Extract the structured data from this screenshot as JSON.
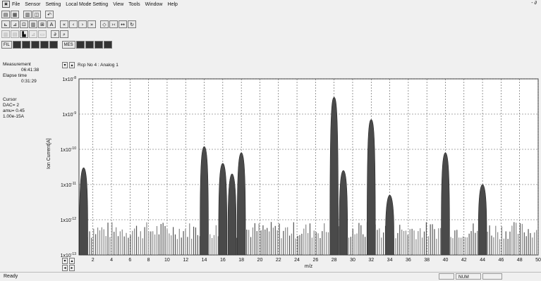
{
  "menu": [
    "File",
    "Sensor",
    "Setting",
    "Local Mode Setting",
    "View",
    "Tools",
    "Window",
    "Help"
  ],
  "window_controls": "- ∂",
  "toolbar_row3_label": "A",
  "toolbar_row4_label": "∂",
  "toolbar_row5_labels": {
    "fil": "FIL",
    "mes": "MES"
  },
  "side": {
    "measurement_label": "Measurement",
    "measurement_time": "06:41:38",
    "elapse_label": "Elapse time",
    "elapse_time": "0:31:29",
    "cursor_label": "Cursor",
    "dac": "DAC=  2",
    "amu": "amu= 0.45",
    "current": "1.00e-15A"
  },
  "chart_header": "Rcp No 4 : Analog 1",
  "status": {
    "ready": "Ready",
    "num": "NUM"
  },
  "chart_data": {
    "type": "bar",
    "xlabel": "m/z",
    "ylabel": "Ion Current[A]",
    "y_scale": "log",
    "ylim": [
      1e-13,
      1e-08
    ],
    "xlim": [
      0.5,
      50
    ],
    "x_ticks": [
      2,
      4,
      6,
      8,
      10,
      12,
      14,
      16,
      18,
      20,
      22,
      24,
      26,
      28,
      30,
      32,
      34,
      36,
      38,
      40,
      42,
      44,
      46,
      48,
      50
    ],
    "y_ticks": [
      "1x10-8",
      "1x10-9",
      "1x10-10",
      "1x10-11",
      "1x10-12",
      "1x10-13"
    ],
    "grid": true,
    "peaks": [
      {
        "mz": 1,
        "value": 3e-11
      },
      {
        "mz": 14,
        "value": 1.2e-10
      },
      {
        "mz": 16,
        "value": 4e-11
      },
      {
        "mz": 17,
        "value": 2e-11
      },
      {
        "mz": 18,
        "value": 8e-11
      },
      {
        "mz": 28,
        "value": 3e-09
      },
      {
        "mz": 29,
        "value": 2.5e-11
      },
      {
        "mz": 32,
        "value": 7e-10
      },
      {
        "mz": 34,
        "value": 5e-12
      },
      {
        "mz": 40,
        "value": 8e-11
      },
      {
        "mz": 44,
        "value": 1e-11
      }
    ],
    "baseline": 5e-13
  }
}
